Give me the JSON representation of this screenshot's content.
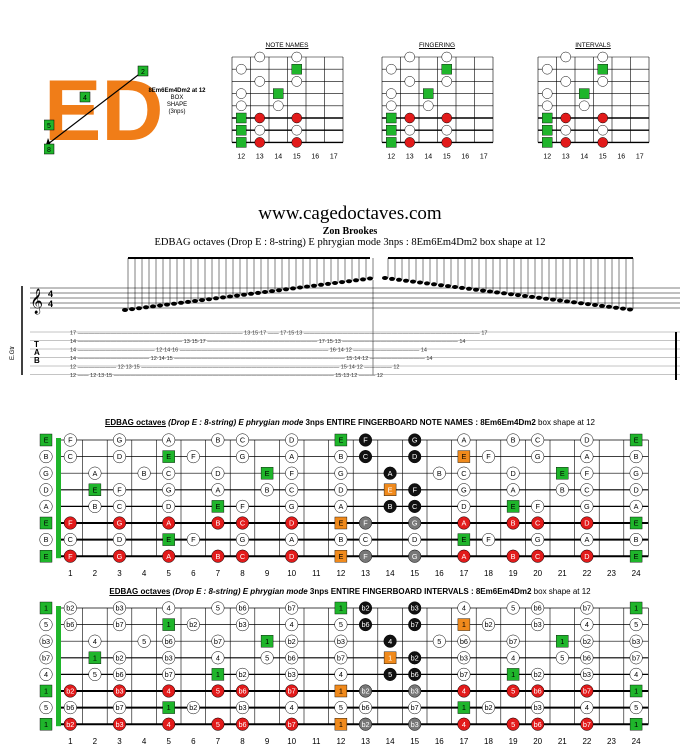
{
  "logo": {
    "text": "ED",
    "color": "#f07d18",
    "shape_name": "8Em6Em4Dm2 at 12",
    "box_line1": "BOX",
    "box_line2": "SHAPE",
    "box_line3": "(3nps)",
    "nodes": [
      "2",
      "4",
      "5",
      "8"
    ]
  },
  "mini_charts": [
    {
      "title": "NOTE NAMES",
      "frets": [
        "12",
        "13",
        "14",
        "15",
        "16",
        "17"
      ]
    },
    {
      "title": "FINGERING",
      "frets": [
        "12",
        "13",
        "14",
        "15",
        "16",
        "17"
      ]
    },
    {
      "title": "INTERVALS",
      "frets": [
        "12",
        "13",
        "14",
        "15",
        "16",
        "17"
      ]
    }
  ],
  "website": "www.cagedoctaves.com",
  "author": "Zon Brookes",
  "subtitle": "EDBAG octaves (Drop E : 8-string) E phrygian mode 3nps : 8Em6Em4Dm2 box shape at 12",
  "staff": {
    "instrument": "E.Gtr",
    "time_sig": "4/4",
    "tab_letters": [
      "T",
      "A",
      "B"
    ],
    "tab_lines": [
      "17 —————————————————————————————— 13·15·17 —— 17·15·13 ———————————————————————————————— 17",
      "14 ——————————————————— 13·15·17 ———————————————————— 17·15·13 ————————————————————— 14",
      "14 —————————————— 12·14·16 ——————————————————————————— 16·14·12 ———————————— 14",
      "14 ————————————— 12·14·15 ——————————————————————————————— 15·14·12 —————————— 14",
      "12 ——————— 12·13·15 ———————————————————————————————————— 15·14·12 ————— 12",
      "12 —— 12·13·15 ———————————————————————————————————————— 15·13·12 ——— 12",
      "12 —— 12·13·15 ———————————————————————————————————————— 15·13·12 ——— 12"
    ]
  },
  "board1": {
    "title_a": "EDBAG octaves",
    "title_b": "(Drop E : 8-string) E phrygian mode",
    "title_c": "3nps",
    "title_d": "ENTIRE FINGERBOARD  NOTE NAMES : 8Em6Em4Dm2",
    "title_e": "box shape at 12",
    "open": [
      "E",
      "B",
      "G",
      "D",
      "A",
      "E",
      "B",
      "E"
    ]
  },
  "board2": {
    "title_a": "EDBAG octaves",
    "title_b": "(Drop E : 8-string) E phrygian mode",
    "title_c": "3nps",
    "title_d": "ENTIRE FINGERBOARD  INTERVALS : 8Em6Em4Dm2",
    "title_e": "box shape at 12",
    "open": [
      "1",
      "5",
      "b3",
      "b7",
      "4",
      "1",
      "5",
      "1"
    ]
  },
  "fret_numbers": [
    "1",
    "2",
    "3",
    "4",
    "5",
    "6",
    "7",
    "8",
    "9",
    "10",
    "11",
    "12",
    "13",
    "14",
    "15",
    "16",
    "17",
    "18",
    "19",
    "20",
    "21",
    "22",
    "23",
    "24"
  ],
  "colors": {
    "root": "#1fb52b",
    "red": "#e21b1b",
    "orange": "#f08a1c",
    "black": "#111111",
    "gray": "#777777"
  }
}
